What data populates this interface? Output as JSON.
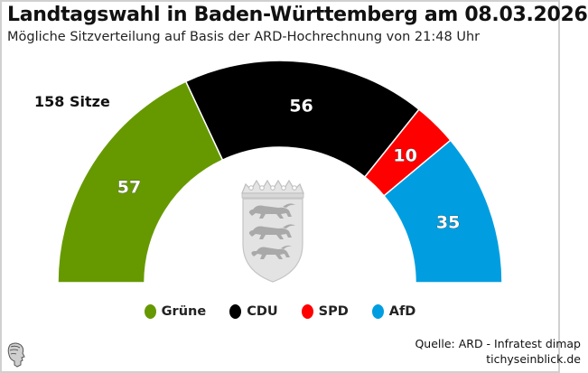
{
  "header": {
    "title": "Landtagswahl in Baden-Württemberg am 08.03.2026",
    "subtitle": "Mögliche Sitzverteilung auf Basis der ARD-Hochrechnung von 21:48 Uhr"
  },
  "chart_data": {
    "type": "pie",
    "subtype": "parliament-semicircle",
    "title": "Landtagswahl in Baden-Württemberg am 08.03.2026",
    "subtitle": "Mögliche Sitzverteilung auf Basis der ARD-Hochrechnung von 21:48 Uhr",
    "total_label": "158 Sitze",
    "total": 158,
    "categories": [
      "Grüne",
      "CDU",
      "SPD",
      "AfD"
    ],
    "values": [
      57,
      56,
      10,
      35
    ],
    "colors": [
      "#669900",
      "#000000",
      "#ff0000",
      "#009ee0"
    ],
    "legend_position": "bottom-center",
    "center_image": "baden-wuerttemberg-coat-of-arms"
  },
  "footer": {
    "source": "Quelle: ARD - Infratest dimap",
    "site": "tichyseinblick.de",
    "logo_icon": "tichy-head-logo-icon"
  }
}
